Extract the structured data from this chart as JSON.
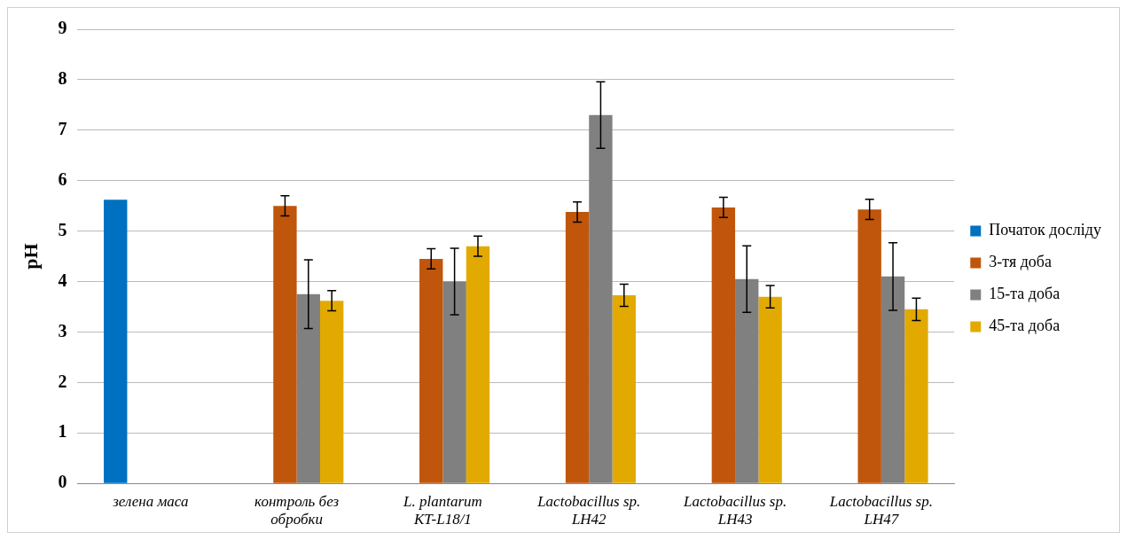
{
  "chart_data": {
    "type": "bar",
    "ylabel": "pH",
    "categories": [
      "зелена маса",
      "контроль без\nобробки",
      "L. plantarum\nKT-L18/1",
      "Lactobacillus sp.\nLH42",
      "Lactobacillus sp.\nLH43",
      "Lactobacillus sp.\nLH47"
    ],
    "series": [
      {
        "name": "Початок досліду",
        "color": "#0070c0",
        "values": [
          5.62,
          null,
          null,
          null,
          null,
          null
        ]
      },
      {
        "name": "3-тя доба",
        "color": "#c0560b",
        "values": [
          null,
          5.5,
          4.45,
          5.38,
          5.47,
          5.43
        ],
        "errors": [
          null,
          0.2,
          0.2,
          0.2,
          0.2,
          0.2
        ]
      },
      {
        "name": "15-та доба",
        "color": "#808080",
        "values": [
          null,
          3.75,
          4.0,
          7.3,
          4.05,
          4.1
        ],
        "errors": [
          null,
          0.68,
          0.66,
          0.66,
          0.66,
          0.67
        ]
      },
      {
        "name": "45-та доба",
        "color": "#e2aa00",
        "values": [
          null,
          3.62,
          4.7,
          3.73,
          3.7,
          3.45
        ],
        "errors": [
          null,
          0.2,
          0.2,
          0.22,
          0.22,
          0.22
        ]
      }
    ],
    "ylim": [
      0,
      9
    ],
    "yticks": [
      0,
      1,
      2,
      3,
      4,
      5,
      6,
      7,
      8,
      9
    ],
    "grid": "y",
    "legend": "right"
  }
}
